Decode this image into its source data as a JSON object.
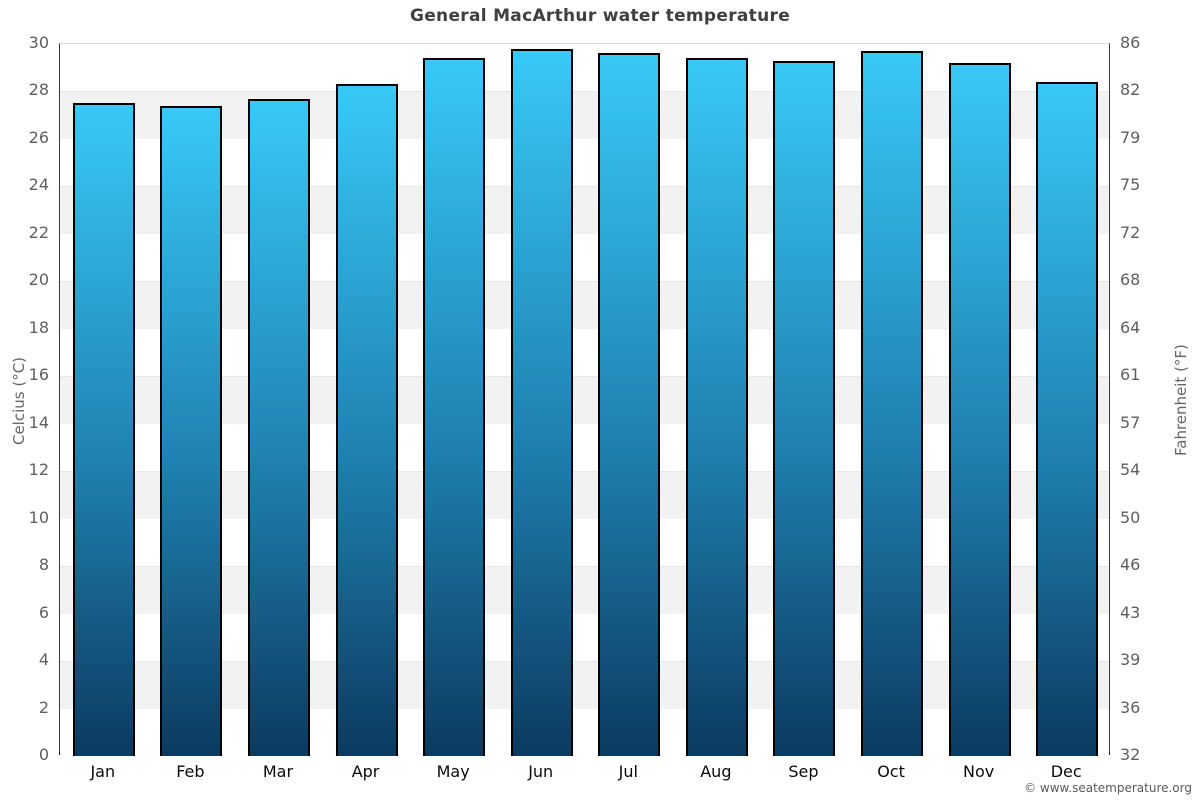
{
  "title": "General MacArthur water temperature",
  "footer": {
    "credit": "© www.seatemperature.org"
  },
  "axes": {
    "left_title": "Celcius (°C)",
    "right_title": "Fahrenheit (°F)",
    "ticks": [
      {
        "c": 30,
        "f": 86
      },
      {
        "c": 28,
        "f": 82
      },
      {
        "c": 26,
        "f": 79
      },
      {
        "c": 24,
        "f": 75
      },
      {
        "c": 22,
        "f": 72
      },
      {
        "c": 20,
        "f": 68
      },
      {
        "c": 18,
        "f": 64
      },
      {
        "c": 16,
        "f": 61
      },
      {
        "c": 14,
        "f": 57
      },
      {
        "c": 12,
        "f": 54
      },
      {
        "c": 10,
        "f": 50
      },
      {
        "c": 8,
        "f": 46
      },
      {
        "c": 6,
        "f": 43
      },
      {
        "c": 4,
        "f": 39
      },
      {
        "c": 2,
        "f": 36
      },
      {
        "c": 0,
        "f": 32
      }
    ]
  },
  "colors": {
    "bar_gradient_top": "#38c9f6",
    "bar_gradient_bottom": "#0c3a60",
    "bar_border": "#000000",
    "band_gray": "#f2f2f2",
    "title_text": "#3f3f3f",
    "tick_text": "#5f5f5f",
    "month_text": "#0a0a0a",
    "axis_title_text": "#666666",
    "credit_text": "#5a5a5a"
  },
  "chart_data": {
    "type": "bar",
    "title": "General MacArthur water temperature",
    "categories": [
      "Jan",
      "Feb",
      "Mar",
      "Apr",
      "May",
      "Jun",
      "Jul",
      "Aug",
      "Sep",
      "Oct",
      "Nov",
      "Dec"
    ],
    "values": [
      27.5,
      27.4,
      27.7,
      28.3,
      29.4,
      29.8,
      29.6,
      29.4,
      29.3,
      29.7,
      29.2,
      28.4
    ],
    "xlabel": "",
    "ylabel": "Celcius (°C)",
    "y2label": "Fahrenheit (°F)",
    "ylim": [
      0,
      30
    ],
    "y2lim": [
      32,
      86
    ],
    "ytick_step": 2,
    "grid": "alternating horizontal 2-degree bands (white / light gray)",
    "legend": "none",
    "bar_style": "vertical gradient, light cyan top to dark navy bottom, black outline"
  }
}
